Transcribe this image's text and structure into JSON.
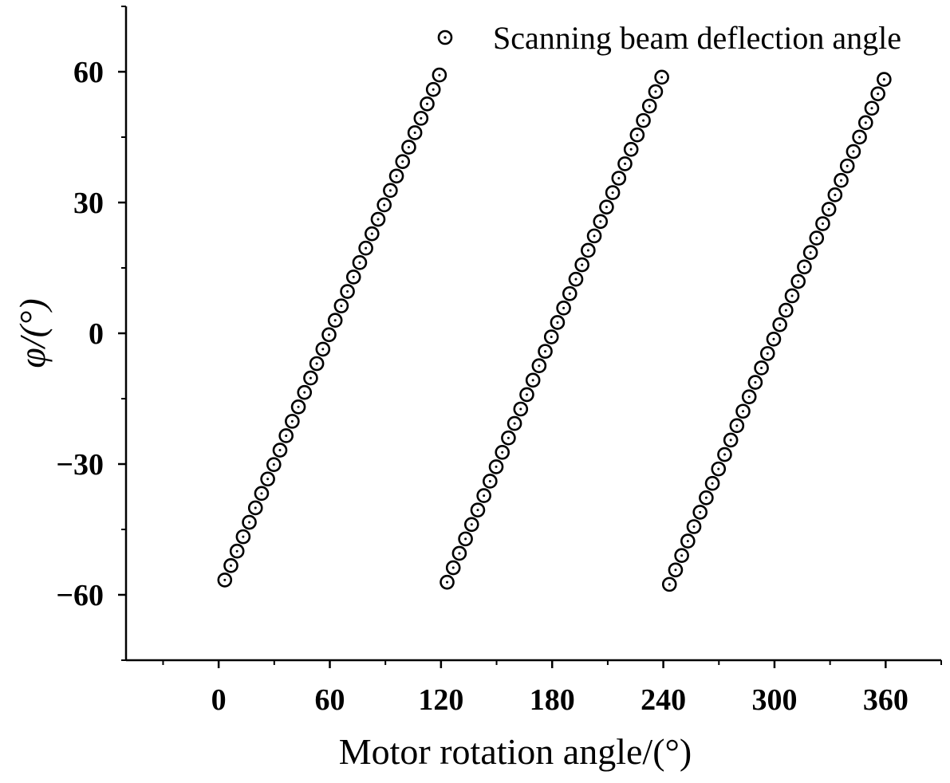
{
  "chart_data": {
    "type": "scatter",
    "title": "",
    "xlabel": "Motor rotation angle/(°)",
    "ylabel": "φ/(°)",
    "xlim": [
      -50,
      390
    ],
    "ylim": [
      -75,
      75
    ],
    "xticks": [
      0,
      60,
      120,
      180,
      240,
      300,
      360
    ],
    "xtick_labels": [
      "0",
      "60",
      "120",
      "180",
      "240",
      "300",
      "360"
    ],
    "yticks": [
      -60,
      -30,
      0,
      30,
      60
    ],
    "ytick_labels": [
      "−60",
      "−30",
      "0",
      "30",
      "60"
    ],
    "grid": false,
    "legend_position": "top-right",
    "marker": "circle-dot",
    "series": [
      {
        "name": "Scanning beam deflection angle",
        "segments": [
          {
            "x_start": 3.3,
            "x_step": 3.31,
            "count": 36,
            "y_start": -56.6,
            "y_step": 3.31
          },
          {
            "x_start": 123.3,
            "x_step": 3.31,
            "count": 36,
            "y_start": -57.1,
            "y_step": 3.31
          },
          {
            "x_start": 243.3,
            "x_step": 3.31,
            "count": 36,
            "y_start": -57.6,
            "y_step": 3.31
          }
        ]
      }
    ]
  }
}
